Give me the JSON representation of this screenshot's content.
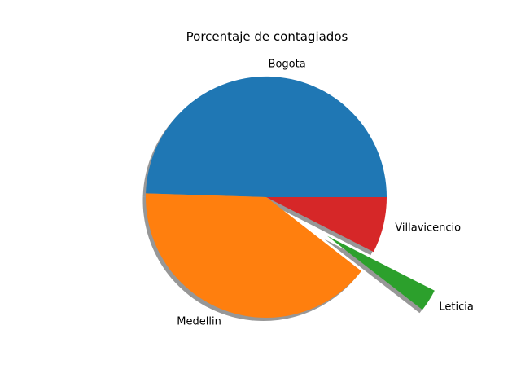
{
  "chart_data": {
    "type": "pie",
    "title": "Porcentaje de contagiados",
    "slices": [
      {
        "label": "Bogota",
        "value": 49.5,
        "color": "#1f77b4",
        "explode": 0
      },
      {
        "label": "Medellin",
        "value": 40.0,
        "color": "#ff7f0e",
        "explode": 0
      },
      {
        "label": "Leticia",
        "value": 3.0,
        "color": "#2ca02c",
        "explode": 0.6
      },
      {
        "label": "Villavicencio",
        "value": 7.5,
        "color": "#d62728",
        "explode": 0
      }
    ],
    "start_angle_deg": 0,
    "direction": "counterclockwise",
    "shadow": true,
    "shadow_color": "#8c8c8c",
    "legend": "none"
  }
}
